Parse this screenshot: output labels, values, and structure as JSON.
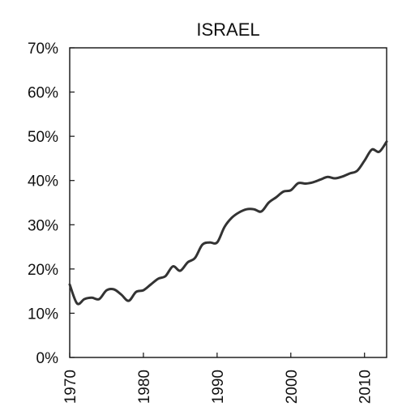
{
  "chart_data": {
    "type": "line",
    "title": "ISRAEL",
    "xlabel": "",
    "ylabel": "",
    "xlim": [
      1970,
      2013
    ],
    "ylim": [
      0,
      70
    ],
    "x_ticks": [
      1970,
      1980,
      1990,
      2000,
      2010
    ],
    "y_ticks": [
      0,
      10,
      20,
      30,
      40,
      50,
      60,
      70
    ],
    "y_tick_labels": [
      "0%",
      "10%",
      "20%",
      "30%",
      "40%",
      "50%",
      "60%",
      "70%"
    ],
    "grid": false,
    "legend": "none",
    "line_color": "#333333",
    "series": [
      {
        "x": [
          1970,
          1971,
          1972,
          1973,
          1974,
          1975,
          1976,
          1977,
          1978,
          1979,
          1980,
          1981,
          1982,
          1983,
          1984,
          1985,
          1986,
          1987,
          1988,
          1989,
          1990,
          1991,
          1992,
          1993,
          1994,
          1995,
          1996,
          1997,
          1998,
          1999,
          2000,
          2001,
          2002,
          2003,
          2004,
          2005,
          2006,
          2007,
          2008,
          2009,
          2010,
          2011,
          2012,
          2013
        ],
        "values": [
          16.5,
          12.2,
          13.2,
          13.5,
          13.2,
          15.2,
          15.4,
          14.2,
          12.8,
          14.8,
          15.2,
          16.5,
          17.8,
          18.4,
          20.6,
          19.6,
          21.5,
          22.5,
          25.5,
          26,
          26,
          29.5,
          31.6,
          32.8,
          33.5,
          33.5,
          33,
          35,
          36.2,
          37.5,
          37.8,
          39.4,
          39.3,
          39.6,
          40.2,
          40.8,
          40.5,
          40.9,
          41.6,
          42.2,
          44.5,
          47,
          46.5,
          48.8
        ]
      }
    ]
  }
}
